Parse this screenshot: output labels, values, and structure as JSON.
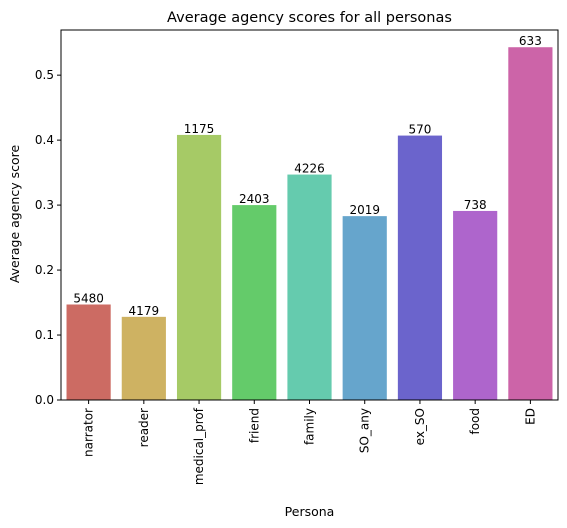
{
  "chart_data": {
    "type": "bar",
    "title": "Average agency scores for all personas",
    "xlabel": "Persona",
    "ylabel": "Average agency score",
    "ylim": [
      0,
      0.5695
    ],
    "yticks": [
      0.0,
      0.1,
      0.2,
      0.3,
      0.4,
      0.5
    ],
    "ytick_labels": [
      "0.0",
      "0.1",
      "0.2",
      "0.3",
      "0.4",
      "0.5"
    ],
    "categories": [
      "narrator",
      "reader",
      "medical_prof",
      "friend",
      "family",
      "SO_any",
      "ex_SO",
      "food",
      "ED"
    ],
    "values": [
      0.147,
      0.128,
      0.408,
      0.3,
      0.347,
      0.283,
      0.407,
      0.291,
      0.543
    ],
    "data_labels": [
      "5480",
      "4179",
      "1175",
      "2403",
      "4226",
      "2019",
      "570",
      "738",
      "633"
    ],
    "colors": [
      "#cc6b63",
      "#ceb262",
      "#a6ca66",
      "#64cb6a",
      "#65cbae",
      "#66a5cc",
      "#6b64cc",
      "#ae65cc",
      "#cc64a8"
    ],
    "grid": false,
    "legend": "none"
  }
}
